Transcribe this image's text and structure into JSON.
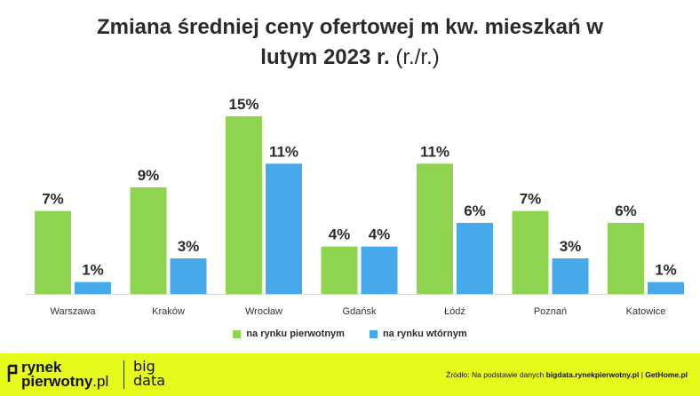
{
  "title": {
    "line1": "Zmiana średniej ceny ofertowej m kw. mieszkań w",
    "line2": "lutym 2023 r.",
    "suffix": "(r./r.)"
  },
  "chart_data": {
    "type": "bar",
    "categories": [
      "Warszawa",
      "Kraków",
      "Wrocław",
      "Gdańsk",
      "Łódź",
      "Poznań",
      "Katowice"
    ],
    "series": [
      {
        "name": "na rynku pierwotnym",
        "color": "#8ed44e",
        "values": [
          7,
          9,
          15,
          4,
          11,
          7,
          6
        ],
        "labels": [
          "7%",
          "9%",
          "15%",
          "4%",
          "11%",
          "7%",
          "6%"
        ]
      },
      {
        "name": "na rynku wtórnym",
        "color": "#45a9ea",
        "values": [
          1,
          3,
          11,
          4,
          6,
          3,
          1
        ],
        "labels": [
          "1%",
          "3%",
          "11%",
          "4%",
          "6%",
          "3%",
          "1%"
        ]
      }
    ],
    "ylim": [
      0,
      15
    ],
    "grid": false,
    "legend": "bottom"
  },
  "footer": {
    "logo_line1": "rynek",
    "logo_line2": "pierwotny",
    "logo_line2_suffix": ".pl",
    "logo2_line1": "big",
    "logo2_line2": "data",
    "source_prefix": "Źródło: Na podstawie danych",
    "source_bold1": "bigdata.rynekpierwotny.pl",
    "source_sep": "|",
    "source_bold2": "GetHome.pl",
    "background": "#e5fb1c"
  }
}
